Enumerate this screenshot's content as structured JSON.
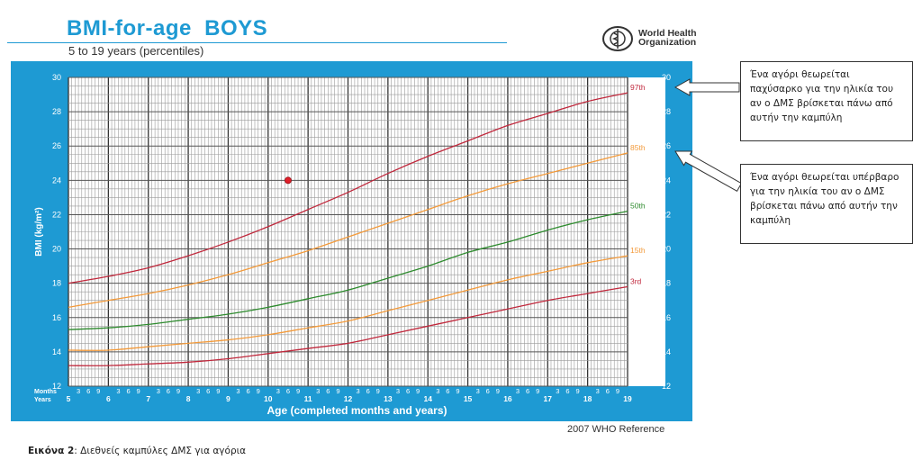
{
  "header": {
    "title": "BMI-for-age  BOYS",
    "subtitle": "5 to 19 years (percentiles)",
    "org_name": "World Health Organization",
    "org_logo": "who-emblem-icon"
  },
  "colors": {
    "panel": "#1E9AD3",
    "p97": "#C0283C",
    "p85": "#F39A3A",
    "p50": "#2E8B2E",
    "p15": "#F39A3A",
    "p3": "#C0283C",
    "marker": "#E0202A"
  },
  "chart_data": {
    "type": "line",
    "title": "BMI-for-age  BOYS",
    "subtitle": "5 to 19 years (percentiles)",
    "xlabel": "Age (completed months and years)",
    "ylabel": "BMI (kg/m²)",
    "x_axis_row_labels": {
      "months": "Months",
      "years": "Years"
    },
    "xlim": [
      5,
      19
    ],
    "ylim": [
      12,
      30
    ],
    "y_ticks": [
      12,
      14,
      16,
      18,
      20,
      22,
      24,
      26,
      28,
      30
    ],
    "x_year_ticks": [
      5,
      6,
      7,
      8,
      9,
      10,
      11,
      12,
      13,
      14,
      15,
      16,
      17,
      18,
      19
    ],
    "x_month_ticks": [
      "3",
      "6",
      "9"
    ],
    "grid": true,
    "series": [
      {
        "name": "97th",
        "x": [
          5,
          6,
          7,
          8,
          9,
          10,
          11,
          12,
          13,
          14,
          15,
          16,
          17,
          18,
          19
        ],
        "y": [
          18.0,
          18.4,
          18.9,
          19.6,
          20.4,
          21.3,
          22.3,
          23.3,
          24.4,
          25.4,
          26.3,
          27.2,
          27.9,
          28.6,
          29.1
        ]
      },
      {
        "name": "85th",
        "x": [
          5,
          6,
          7,
          8,
          9,
          10,
          11,
          12,
          13,
          14,
          15,
          16,
          17,
          18,
          19
        ],
        "y": [
          16.6,
          17.0,
          17.4,
          17.9,
          18.5,
          19.2,
          19.9,
          20.7,
          21.5,
          22.3,
          23.1,
          23.8,
          24.4,
          25.0,
          25.6
        ]
      },
      {
        "name": "50th",
        "x": [
          5,
          6,
          7,
          8,
          9,
          10,
          11,
          12,
          13,
          14,
          15,
          16,
          17,
          18,
          19
        ],
        "y": [
          15.3,
          15.4,
          15.6,
          15.9,
          16.2,
          16.6,
          17.1,
          17.6,
          18.3,
          19.0,
          19.8,
          20.4,
          21.1,
          21.7,
          22.2
        ]
      },
      {
        "name": "15th",
        "x": [
          5,
          6,
          7,
          8,
          9,
          10,
          11,
          12,
          13,
          14,
          15,
          16,
          17,
          18,
          19
        ],
        "y": [
          14.1,
          14.1,
          14.3,
          14.5,
          14.7,
          15.0,
          15.4,
          15.8,
          16.4,
          17.0,
          17.6,
          18.2,
          18.7,
          19.2,
          19.6
        ]
      },
      {
        "name": "3rd",
        "x": [
          5,
          6,
          7,
          8,
          9,
          10,
          11,
          12,
          13,
          14,
          15,
          16,
          17,
          18,
          19
        ],
        "y": [
          13.2,
          13.2,
          13.3,
          13.4,
          13.6,
          13.9,
          14.2,
          14.5,
          15.0,
          15.5,
          16.0,
          16.5,
          17.0,
          17.4,
          17.8
        ]
      }
    ],
    "points": [
      {
        "x": 10.5,
        "y": 24.0
      }
    ],
    "reference": "2007  WHO Reference"
  },
  "annotations": {
    "obese_note": "Ένα αγόρι θεωρείται παχύσαρκο για την ηλικία του αν ο ΔΜΣ βρίσκεται πάνω από αυτήν την καμπύλη",
    "overweight_note": "Ένα αγόρι θεωρείται υπέρβαρο για την ηλικία του αν ο ΔΜΣ βρίσκεται πάνω από αυτήν την καμπύλη"
  },
  "footer": {
    "reference": "2007  WHO Reference",
    "caption_label": "Εικόνα 2",
    "caption_text": ": Διεθνείς καμπύλες ΔΜΣ για αγόρια"
  }
}
